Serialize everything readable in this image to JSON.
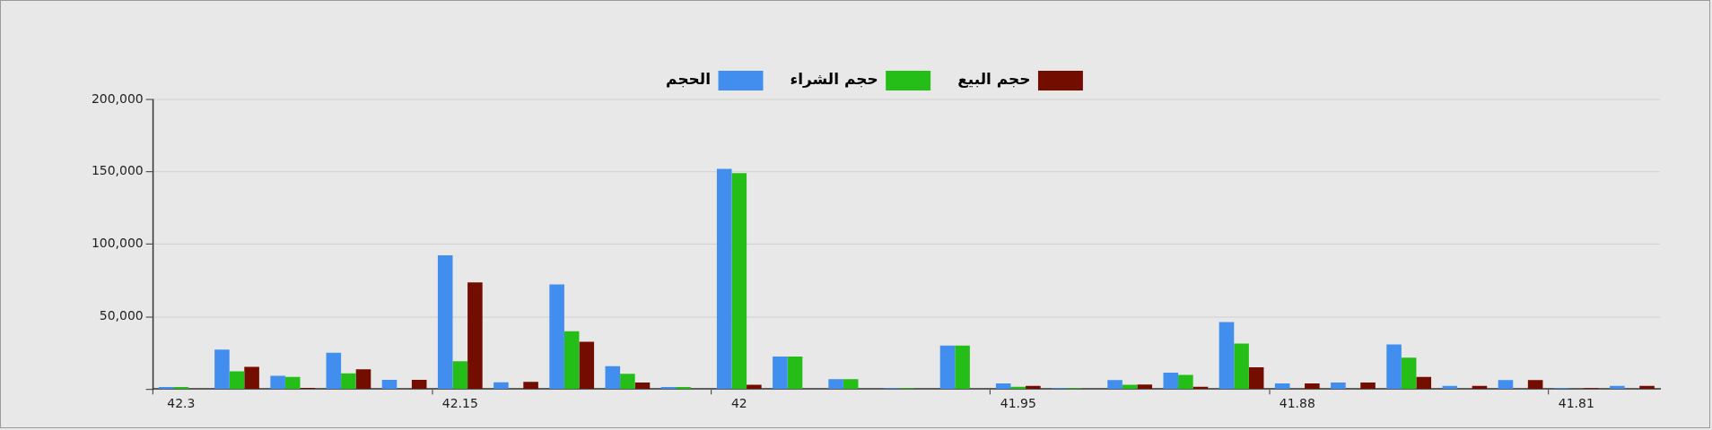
{
  "chart_data": {
    "type": "bar",
    "categories": [
      "42.3",
      null,
      null,
      null,
      null,
      "42.15",
      null,
      null,
      null,
      null,
      "42",
      null,
      null,
      null,
      null,
      "41.95",
      null,
      null,
      null,
      null,
      "41.88",
      null,
      null,
      null,
      null,
      "41.81",
      null
    ],
    "series": [
      {
        "name": "الحجم",
        "color": "#428eef",
        "values": [
          1400,
          27300,
          9200,
          25100,
          6400,
          92400,
          4700,
          72300,
          15800,
          1400,
          152100,
          22500,
          6900,
          700,
          30000,
          3900,
          700,
          6200,
          11400,
          46300,
          3900,
          4600,
          30800,
          2300,
          6200,
          700,
          2300
        ]
      },
      {
        "name": "حجم الشراء",
        "color": "#25be18",
        "values": [
          1500,
          12300,
          8500,
          10900,
          0,
          19200,
          0,
          40000,
          10600,
          1400,
          149100,
          22500,
          6900,
          700,
          30000,
          1600,
          700,
          3000,
          9800,
          31500,
          0,
          0,
          21700,
          0,
          0,
          0,
          0
        ]
      },
      {
        "name": "حجم البيع",
        "color": "#720d00",
        "values": [
          0,
          15400,
          900,
          13700,
          6400,
          73700,
          5000,
          32700,
          4600,
          0,
          3000,
          0,
          0,
          0,
          0,
          2300,
          0,
          3200,
          1600,
          15100,
          3900,
          4600,
          8400,
          2300,
          6200,
          700,
          2300
        ]
      }
    ],
    "ylim": [
      0,
      200000
    ],
    "yticks": [
      {
        "value": 0,
        "label": null
      },
      {
        "value": 50000,
        "label": "50,000"
      },
      {
        "value": 100000,
        "label": "100,000"
      },
      {
        "value": 150000,
        "label": "150,000"
      },
      {
        "value": 200000,
        "label": "200,000"
      }
    ],
    "grid": "y",
    "legend": "top"
  }
}
